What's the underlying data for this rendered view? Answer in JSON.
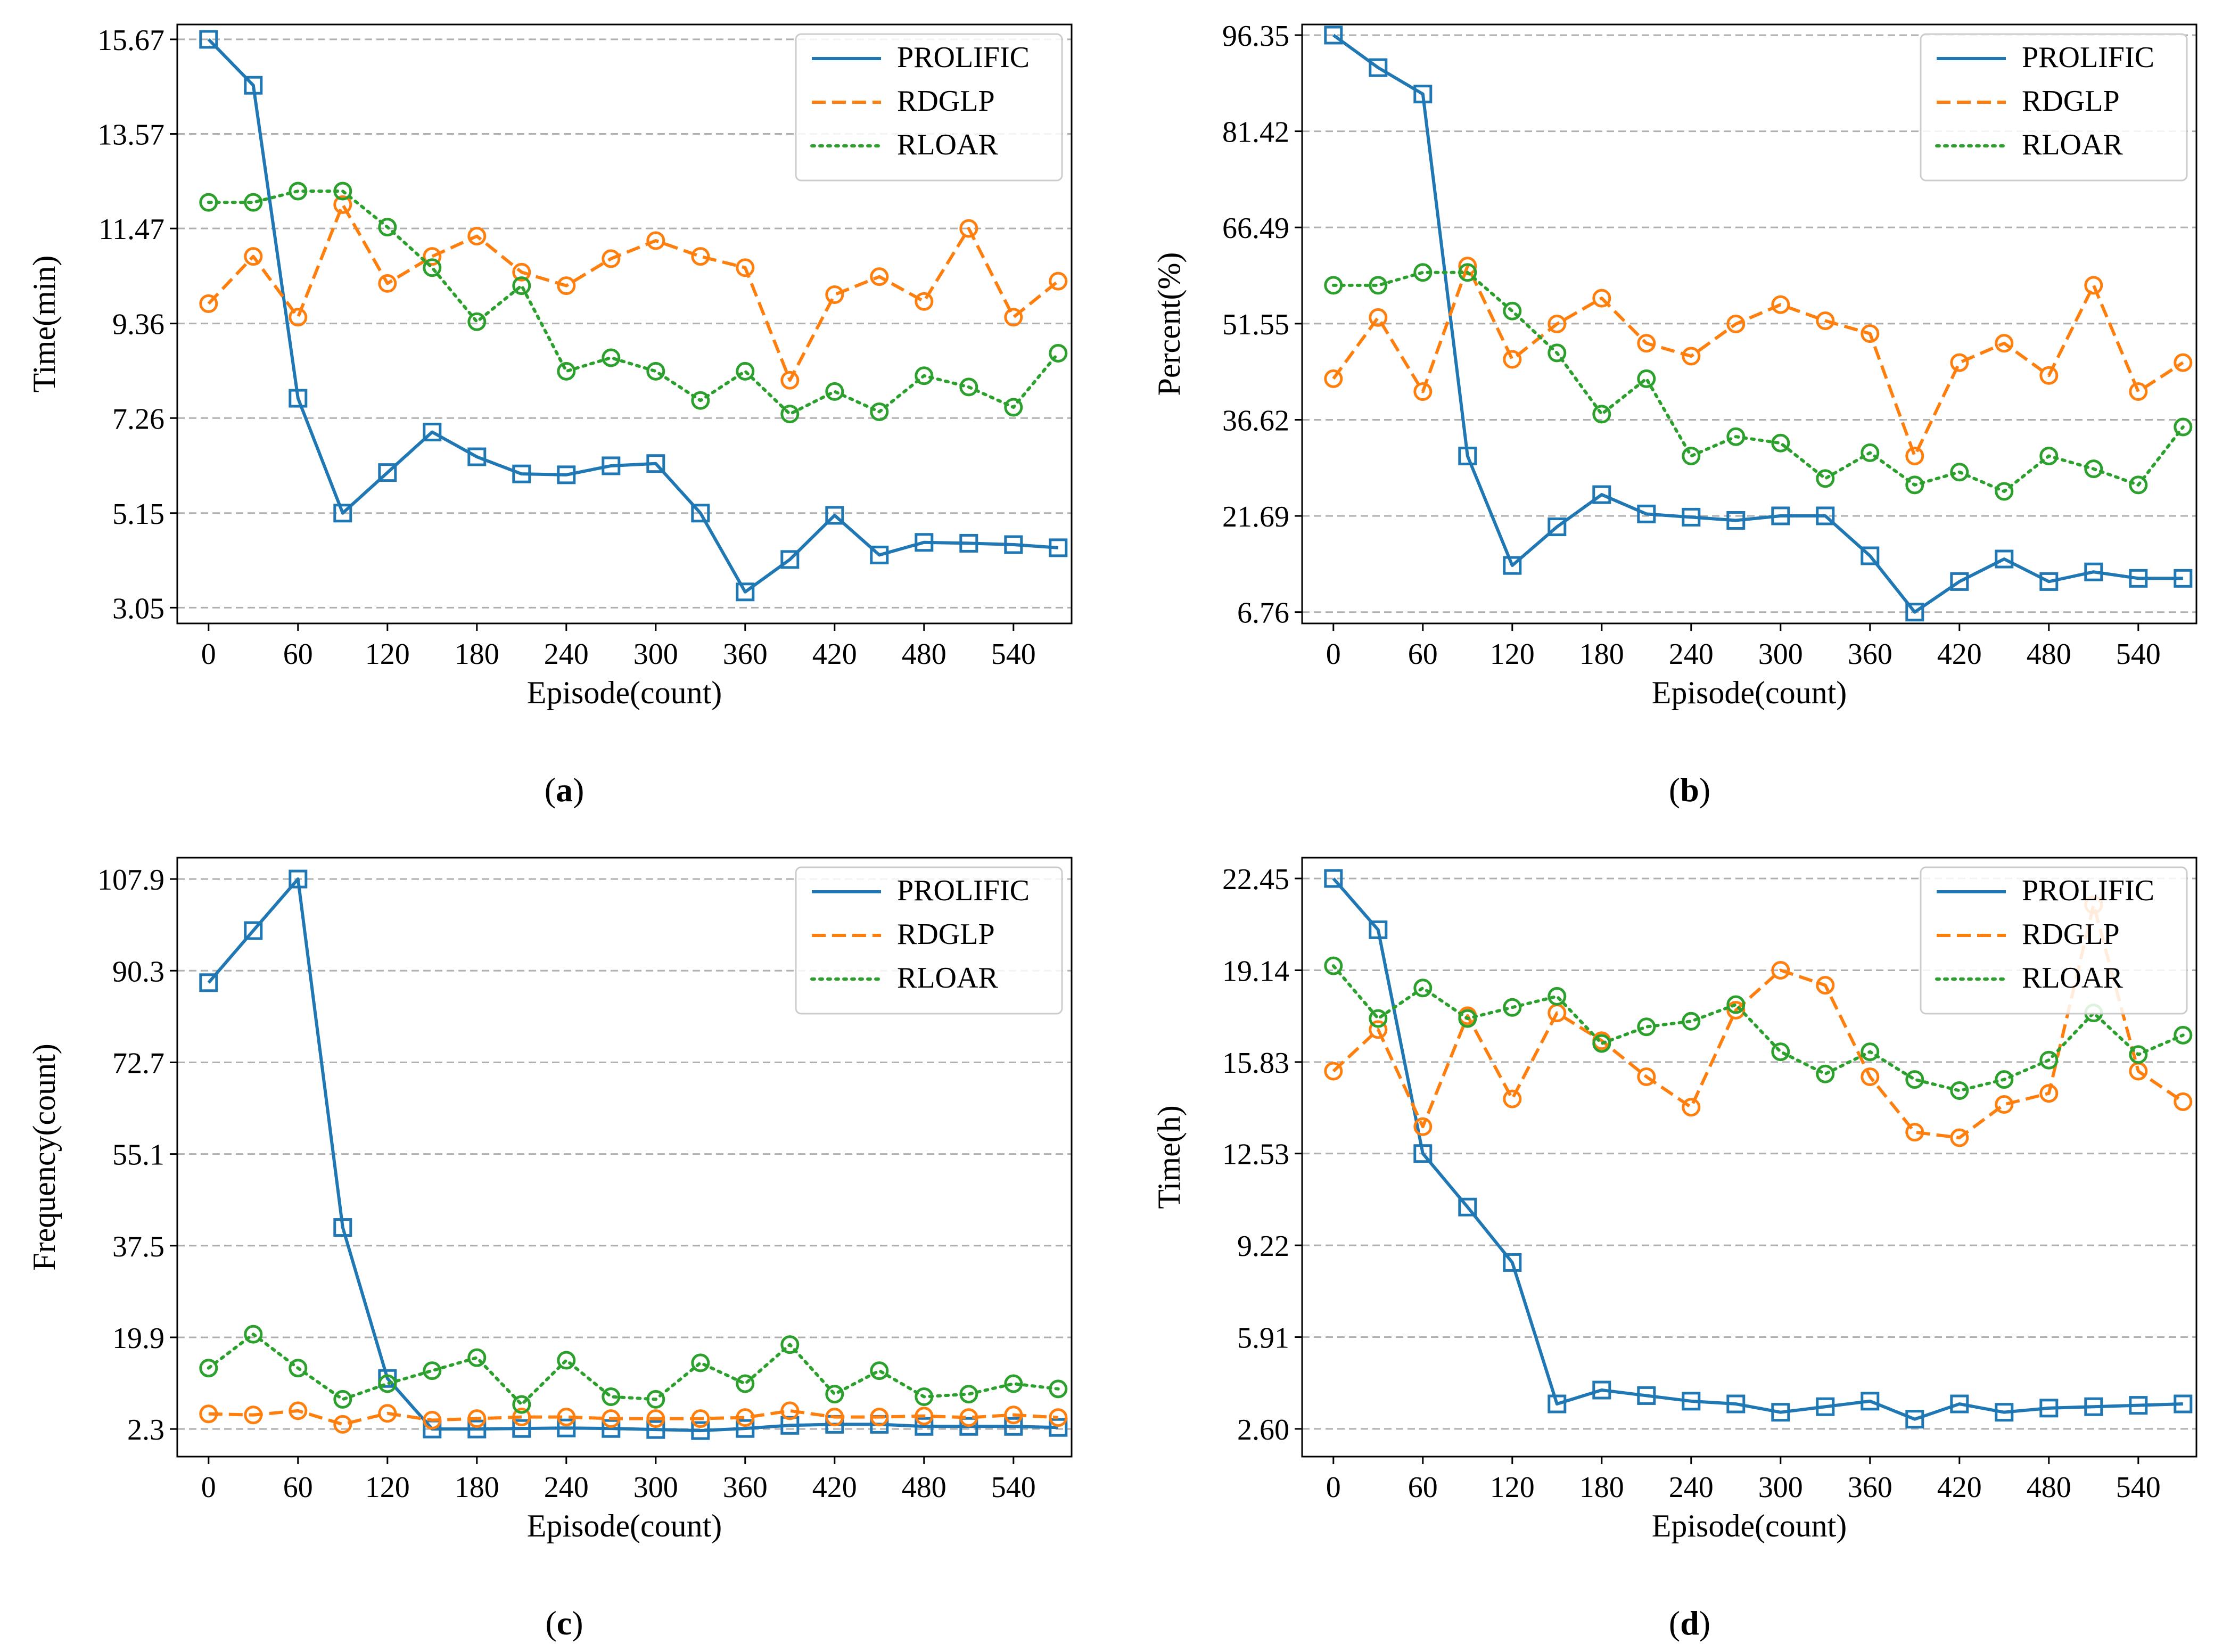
{
  "colors": {
    "prolific": "#1f77b4",
    "rdglp": "#ff7f0e",
    "rloar": "#2ca02c",
    "grid": "#b0b0b0"
  },
  "chart_data": [
    {
      "type": "line",
      "caption": "(a)",
      "caption_letter": "a",
      "xlabel": "Episode(count)",
      "ylabel": "Time(min)",
      "xticks": [
        "0",
        "60",
        "120",
        "180",
        "240",
        "300",
        "360",
        "420",
        "480",
        "540"
      ],
      "yticks": [
        "3.05",
        "5.15",
        "7.26",
        "9.36",
        "11.47",
        "13.57",
        "15.67"
      ],
      "xlim": [
        -21,
        579
      ],
      "ylim": [
        2.7,
        16.0
      ],
      "legend_position": "top-right",
      "grid": "horizontal dashed",
      "x": [
        0,
        30,
        60,
        90,
        120,
        150,
        180,
        210,
        240,
        270,
        300,
        330,
        360,
        390,
        420,
        450,
        480,
        510,
        540,
        570
      ],
      "series": [
        {
          "name": "PROLIFIC",
          "key": "prolific",
          "marker": "square",
          "style": "solid",
          "values": [
            15.67,
            14.65,
            7.7,
            5.15,
            6.05,
            6.95,
            6.4,
            6.02,
            6.0,
            6.2,
            6.25,
            5.15,
            3.4,
            4.12,
            5.1,
            4.22,
            4.5,
            4.48,
            4.45,
            4.38
          ]
        },
        {
          "name": "RDGLP",
          "key": "rdglp",
          "marker": "circle",
          "style": "dashed",
          "values": [
            9.8,
            10.85,
            9.5,
            12.0,
            10.25,
            10.85,
            11.3,
            10.5,
            10.2,
            10.8,
            11.2,
            10.85,
            10.6,
            8.1,
            10.0,
            10.4,
            9.85,
            11.47,
            9.5,
            10.3
          ]
        },
        {
          "name": "RLOAR",
          "key": "rloar",
          "marker": "circle",
          "style": "dotted",
          "values": [
            12.05,
            12.05,
            12.3,
            12.3,
            11.5,
            10.6,
            9.4,
            10.2,
            8.3,
            8.6,
            8.3,
            7.65,
            8.3,
            7.35,
            7.85,
            7.4,
            8.2,
            7.95,
            7.5,
            8.7
          ]
        }
      ]
    },
    {
      "type": "line",
      "caption": "(b)",
      "caption_letter": "b",
      "xlabel": "Episode(count)",
      "ylabel": "Percent(%)",
      "xticks": [
        "0",
        "60",
        "120",
        "180",
        "240",
        "300",
        "360",
        "420",
        "480",
        "540"
      ],
      "yticks": [
        "6.76",
        "21.69",
        "36.62",
        "51.55",
        "66.49",
        "81.42",
        "96.35"
      ],
      "xlim": [
        -21,
        579
      ],
      "ylim": [
        5.0,
        98.0
      ],
      "legend_position": "top-right",
      "grid": "horizontal dashed",
      "x": [
        0,
        30,
        60,
        90,
        120,
        150,
        180,
        210,
        240,
        270,
        300,
        330,
        360,
        390,
        420,
        450,
        480,
        510,
        540,
        570
      ],
      "series": [
        {
          "name": "PROLIFIC",
          "key": "prolific",
          "marker": "square",
          "style": "solid",
          "values": [
            96.35,
            91.3,
            87.2,
            31.0,
            14.0,
            20.0,
            25.0,
            22.0,
            21.5,
            21.0,
            21.7,
            21.7,
            15.5,
            6.76,
            11.5,
            15.0,
            11.5,
            13.0,
            12.0,
            12.0
          ]
        },
        {
          "name": "RDGLP",
          "key": "rdglp",
          "marker": "circle",
          "style": "dashed",
          "values": [
            43.0,
            52.5,
            41.0,
            60.5,
            46.0,
            51.5,
            55.5,
            48.5,
            46.5,
            51.5,
            54.5,
            52.0,
            50.0,
            31.0,
            45.5,
            48.5,
            43.5,
            57.5,
            41.0,
            45.5
          ]
        },
        {
          "name": "RLOAR",
          "key": "rloar",
          "marker": "circle",
          "style": "dotted",
          "values": [
            57.5,
            57.5,
            59.5,
            59.5,
            53.5,
            47.0,
            37.5,
            43.0,
            31.0,
            34.0,
            33.0,
            27.5,
            31.5,
            26.5,
            28.5,
            25.5,
            31.0,
            29.0,
            26.5,
            35.5
          ]
        }
      ]
    },
    {
      "type": "line",
      "caption": "(c)",
      "caption_letter": "c",
      "xlabel": "Episode(count)",
      "ylabel": "Frequency(count)",
      "xticks": [
        "0",
        "60",
        "120",
        "180",
        "240",
        "300",
        "360",
        "420",
        "480",
        "540"
      ],
      "yticks": [
        "2.3",
        "19.9",
        "37.5",
        "55.1",
        "72.7",
        "90.3",
        "107.9"
      ],
      "xlim": [
        -21,
        579
      ],
      "ylim": [
        -3.0,
        112.0
      ],
      "legend_position": "top-right",
      "grid": "horizontal dashed",
      "x": [
        0,
        30,
        60,
        90,
        120,
        150,
        180,
        210,
        240,
        270,
        300,
        330,
        360,
        390,
        420,
        450,
        480,
        510,
        540,
        570
      ],
      "series": [
        {
          "name": "PROLIFIC",
          "key": "prolific",
          "marker": "square",
          "style": "solid",
          "values": [
            88.0,
            98.0,
            107.9,
            41.0,
            12.0,
            2.3,
            2.3,
            2.4,
            2.5,
            2.4,
            2.2,
            2.0,
            2.4,
            3.0,
            3.2,
            3.2,
            2.8,
            2.8,
            2.8,
            2.6
          ]
        },
        {
          "name": "RDGLP",
          "key": "rdglp",
          "marker": "circle",
          "style": "dashed",
          "values": [
            5.2,
            5.0,
            5.8,
            3.2,
            5.3,
            4.0,
            4.3,
            4.6,
            4.6,
            4.3,
            4.3,
            4.3,
            4.5,
            5.8,
            4.6,
            4.6,
            4.8,
            4.5,
            5.0,
            4.5
          ]
        },
        {
          "name": "RLOAR",
          "key": "rloar",
          "marker": "circle",
          "style": "dotted",
          "values": [
            14.0,
            20.5,
            14.0,
            8.0,
            11.0,
            13.5,
            16.0,
            7.0,
            15.5,
            8.5,
            8.0,
            15.0,
            11.0,
            18.5,
            9.0,
            13.5,
            8.5,
            9.0,
            11.0,
            10.0
          ]
        }
      ]
    },
    {
      "type": "line",
      "caption": "(d)",
      "caption_letter": "d",
      "xlabel": "Episode(count)",
      "ylabel": "Time(h)",
      "xticks": [
        "0",
        "60",
        "120",
        "180",
        "240",
        "300",
        "360",
        "420",
        "480",
        "540"
      ],
      "yticks": [
        "2.60",
        "5.91",
        "9.22",
        "12.53",
        "15.83",
        "19.14",
        "22.45"
      ],
      "xlim": [
        -21,
        579
      ],
      "ylim": [
        1.6,
        23.2
      ],
      "legend_position": "top-right",
      "grid": "horizontal dashed",
      "x": [
        0,
        30,
        60,
        90,
        120,
        150,
        180,
        210,
        240,
        270,
        300,
        330,
        360,
        390,
        420,
        450,
        480,
        510,
        540,
        570
      ],
      "series": [
        {
          "name": "PROLIFIC",
          "key": "prolific",
          "marker": "square",
          "style": "solid",
          "values": [
            22.45,
            20.6,
            12.53,
            10.6,
            8.6,
            3.5,
            4.0,
            3.8,
            3.6,
            3.5,
            3.2,
            3.4,
            3.6,
            2.95,
            3.5,
            3.2,
            3.35,
            3.4,
            3.45,
            3.5
          ]
        },
        {
          "name": "RDGLP",
          "key": "rdglp",
          "marker": "circle",
          "style": "dashed",
          "values": [
            15.5,
            17.0,
            13.5,
            17.5,
            14.5,
            17.6,
            16.6,
            15.3,
            14.2,
            17.7,
            19.14,
            18.6,
            15.3,
            13.3,
            13.1,
            14.3,
            14.7,
            21.5,
            15.5,
            14.4
          ]
        },
        {
          "name": "RLOAR",
          "key": "rloar",
          "marker": "circle",
          "style": "dotted",
          "values": [
            19.3,
            17.4,
            18.5,
            17.4,
            17.8,
            18.2,
            16.5,
            17.1,
            17.3,
            17.9,
            16.2,
            15.4,
            16.2,
            15.2,
            14.8,
            15.2,
            15.9,
            17.6,
            16.1,
            16.8
          ]
        }
      ]
    }
  ]
}
